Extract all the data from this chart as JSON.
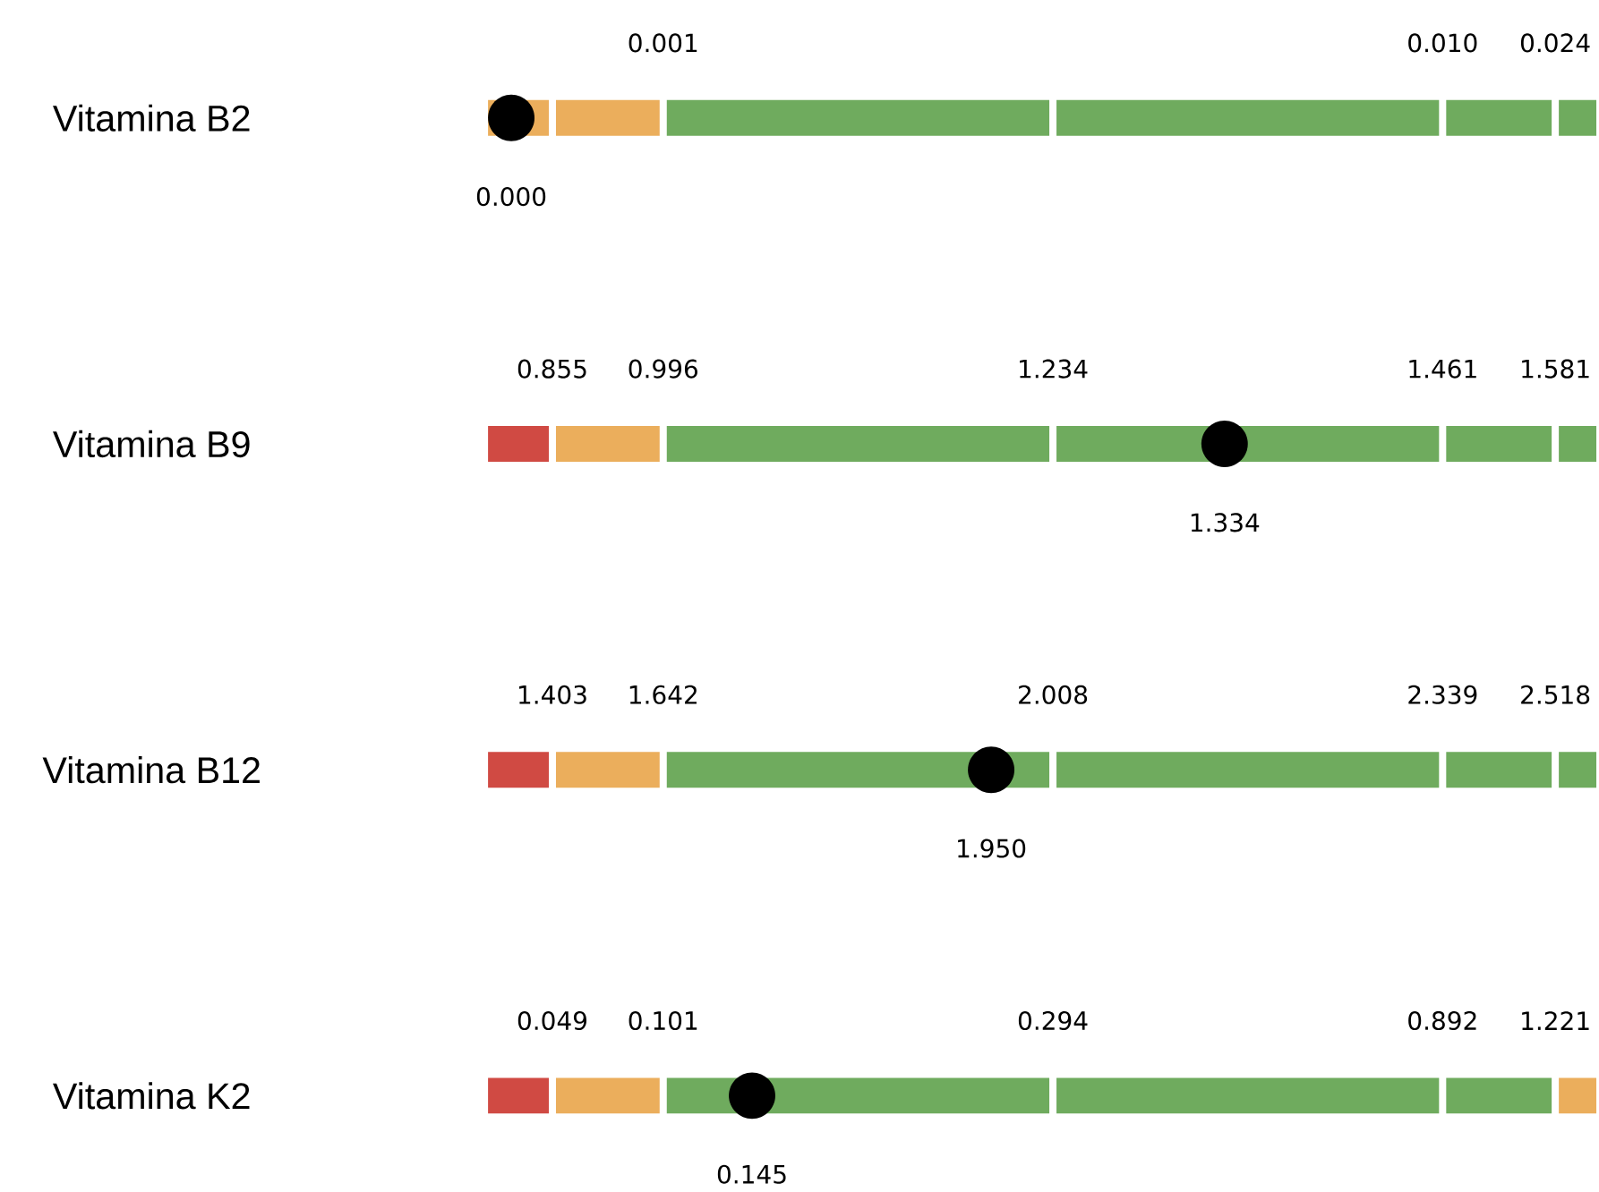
{
  "chart_data": {
    "type": "other",
    "categories": [
      "Vitamina B2",
      "Vitamina B9",
      "Vitamina B12",
      "Vitamina K2"
    ],
    "series": [
      {
        "type": "bar",
        "colors": [
          "#ebae5c",
          "#d04a43",
          "#d04a43",
          "#d04a43"
        ],
        "values": [
          null,
          0.855,
          1.403,
          0.049
        ],
        "value_labels": [
          null,
          "0.855",
          "1.403",
          "0.049"
        ]
      },
      {
        "type": "bar",
        "colors": [
          "#ebae5c",
          "#ebae5c",
          "#ebae5c",
          "#ebae5c"
        ],
        "values": [
          0.001,
          0.996,
          1.642,
          0.101
        ],
        "value_labels": [
          "0.001",
          "0.996",
          "1.642",
          "0.101"
        ]
      },
      {
        "type": "bar",
        "colors": [
          "#6fab5e",
          "#6fab5e",
          "#6fab5e",
          "#6fab5e"
        ],
        "values": [
          null,
          1.234,
          2.008,
          0.294
        ],
        "value_labels": [
          null,
          "1.234",
          "2.008",
          "0.294"
        ]
      },
      {
        "type": "bar",
        "colors": [
          "#6fab5e",
          "#6fab5e",
          "#6fab5e",
          "#6fab5e"
        ],
        "values": [
          0.01,
          1.461,
          2.339,
          0.892
        ],
        "value_labels": [
          "0.010",
          "1.461",
          "2.339",
          "0.892"
        ]
      },
      {
        "type": "bar",
        "colors": [
          "#6fab5e",
          "#6fab5e",
          "#6fab5e",
          "#6fab5e"
        ],
        "values": [
          0.024,
          1.581,
          2.518,
          1.221
        ],
        "value_labels": [
          "0.024",
          "1.581",
          "2.518",
          "1.221"
        ]
      },
      {
        "type": "bar",
        "colors": [
          "#6fab5e",
          "#6fab5e",
          "#6fab5e",
          "#ebae5c"
        ],
        "values": [
          null,
          null,
          null,
          null
        ]
      },
      {
        "type": "scatter",
        "color": "#000000",
        "values": [
          0.0,
          1.334,
          1.95,
          0.145
        ],
        "value_labels": [
          "0.000",
          "1.334",
          "1.950",
          "0.145"
        ]
      }
    ]
  }
}
